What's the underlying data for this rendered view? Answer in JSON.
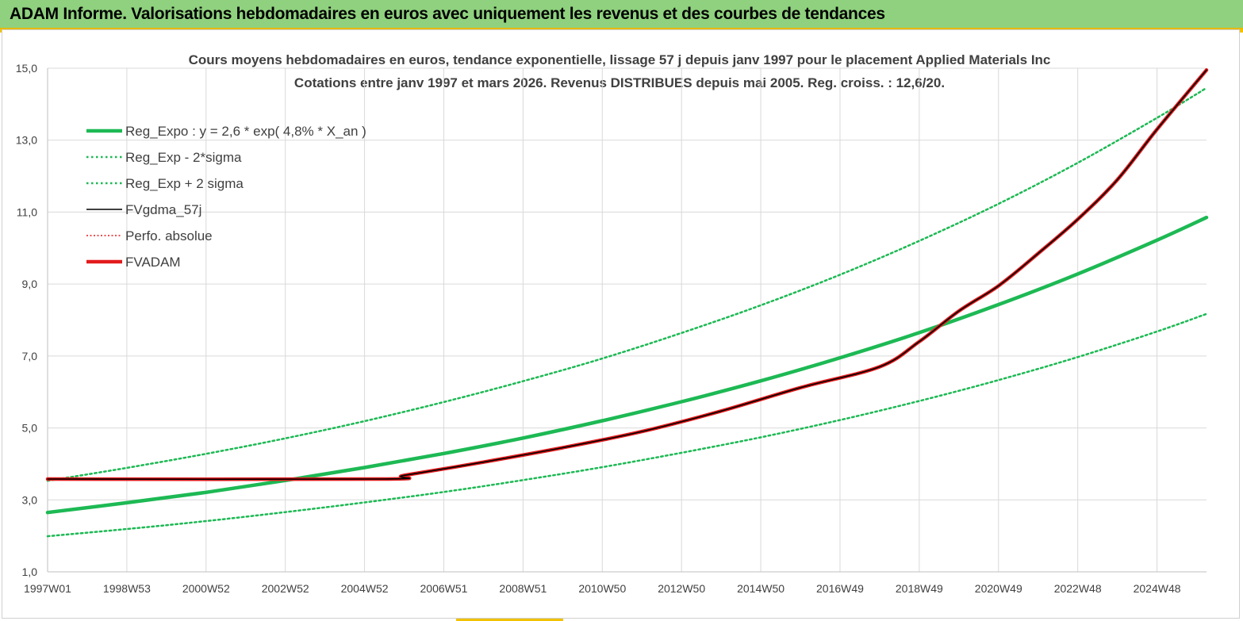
{
  "banner": {
    "title": "ADAM Informe. Valorisations hebdomadaires en euros avec uniquement les revenus et des courbes de tendances"
  },
  "chart_data": {
    "type": "line",
    "title": "Cours moyens hebdomadaires en euros, tendance exponentielle, lissage 57 j depuis janv 1997 pour le placement Applied Materials Inc",
    "subtitle": "Cotations entre janv 1997 et mars 2026. Revenus DISTRIBUES depuis mai 2005. Reg. croiss. : 12,6/20.",
    "xlabel": "",
    "ylabel": "",
    "ylim": [
      1.0,
      15.0
    ],
    "yticks": [
      "1,0",
      "3,0",
      "5,0",
      "7,0",
      "9,0",
      "11,0",
      "13,0",
      "15,0"
    ],
    "xticks": [
      "1997W01",
      "1998W53",
      "2000W52",
      "2002W52",
      "2004W52",
      "2006W51",
      "2008W51",
      "2010W50",
      "2012W50",
      "2014W50",
      "2016W49",
      "2018W49",
      "2020W49",
      "2022W48",
      "2024W48"
    ],
    "xtick_years": [
      1997.0,
      1999.0,
      2001.0,
      2003.0,
      2005.0,
      2007.0,
      2009.0,
      2011.0,
      2013.0,
      2015.0,
      2017.0,
      2019.0,
      2021.0,
      2023.0,
      2025.0
    ],
    "xlim": [
      1997.0,
      2026.25
    ],
    "grid": true,
    "legend_position": "top-left",
    "series": [
      {
        "name": "Reg_Expo : y = 2,6 * exp( 4,8% *  X_an )",
        "color": "#1db954",
        "style": "solid-thick",
        "x": [
          1997,
          1999,
          2001,
          2003,
          2005,
          2007,
          2009,
          2011,
          2013,
          2015,
          2017,
          2019,
          2021,
          2023,
          2025,
          2026.25
        ],
        "y": [
          2.65,
          2.92,
          3.21,
          3.54,
          3.9,
          4.29,
          4.72,
          5.2,
          5.73,
          6.31,
          6.95,
          7.65,
          8.43,
          9.28,
          10.22,
          10.85
        ]
      },
      {
        "name": "Reg_Exp - 2*sigma",
        "color": "#1db954",
        "style": "dotted",
        "x": [
          1997,
          1999,
          2001,
          2003,
          2005,
          2007,
          2009,
          2011,
          2013,
          2015,
          2017,
          2019,
          2021,
          2023,
          2025,
          2026.25
        ],
        "y": [
          1.99,
          2.19,
          2.41,
          2.66,
          2.93,
          3.22,
          3.55,
          3.91,
          4.31,
          4.74,
          5.22,
          5.75,
          6.33,
          6.97,
          7.68,
          8.17
        ]
      },
      {
        "name": "Reg_Exp + 2 sigma",
        "color": "#1db954",
        "style": "dotted",
        "x": [
          1997,
          1999,
          2001,
          2003,
          2005,
          2007,
          2009,
          2011,
          2013,
          2015,
          2017,
          2019,
          2021,
          2023,
          2025,
          2026.25
        ],
        "y": [
          3.53,
          3.89,
          4.28,
          4.71,
          5.19,
          5.72,
          6.3,
          6.93,
          7.64,
          8.41,
          9.26,
          10.2,
          11.23,
          12.37,
          13.62,
          14.45
        ]
      },
      {
        "name": "FVgdma_57j",
        "color": "#000000",
        "style": "solid",
        "x": [
          1997,
          2005.4,
          2006,
          2008,
          2010,
          2012,
          2014,
          2016,
          2018,
          2019,
          2020,
          2021,
          2022,
          2023,
          2024,
          2025,
          2026.25
        ],
        "y": [
          3.58,
          3.58,
          3.68,
          4.05,
          4.45,
          4.9,
          5.47,
          6.12,
          6.7,
          7.4,
          8.25,
          8.95,
          9.85,
          10.8,
          11.9,
          13.3,
          14.95
        ]
      },
      {
        "name": "Perfo. absolue",
        "color": "#e31a1c",
        "style": "dotted",
        "x": [
          1997,
          2005.4,
          2006,
          2008,
          2010,
          2012,
          2014,
          2016,
          2018,
          2019,
          2020,
          2021,
          2022,
          2023,
          2024,
          2025,
          2026.25
        ],
        "y": [
          3.58,
          3.58,
          3.68,
          4.05,
          4.45,
          4.9,
          5.47,
          6.12,
          6.7,
          7.4,
          8.25,
          8.95,
          9.85,
          10.8,
          11.9,
          13.3,
          14.95
        ]
      },
      {
        "name": "FVADAM",
        "color": "#e31a1c",
        "style": "solid-thick",
        "x": [
          1997,
          2005.4,
          2006,
          2008,
          2010,
          2012,
          2014,
          2016,
          2018,
          2019,
          2020,
          2021,
          2022,
          2023,
          2024,
          2025,
          2026.25
        ],
        "y": [
          3.58,
          3.58,
          3.68,
          4.05,
          4.45,
          4.9,
          5.47,
          6.12,
          6.7,
          7.4,
          8.25,
          8.95,
          9.85,
          10.8,
          11.9,
          13.3,
          14.95
        ]
      }
    ]
  },
  "colors": {
    "banner_bg": "#8fd17e",
    "banner_border": "#e8b800",
    "grid": "#d9d9d9",
    "text": "#333333"
  }
}
